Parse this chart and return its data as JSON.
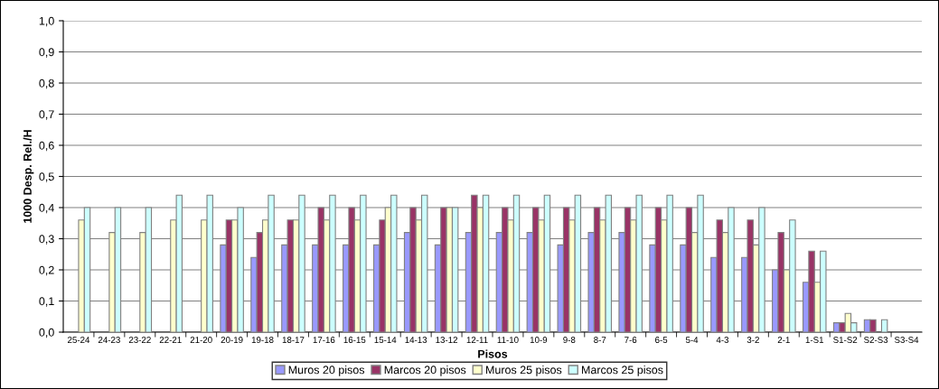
{
  "chart_data": {
    "type": "bar",
    "xlabel": "Pisos",
    "ylabel": "1000 Desp. Rel./H",
    "categories": [
      "25-24",
      "24-23",
      "23-22",
      "22-21",
      "21-20",
      "20-19",
      "19-18",
      "18-17",
      "17-16",
      "16-15",
      "15-14",
      "14-13",
      "13-12",
      "12-11",
      "11-10",
      "10-9",
      "9-8",
      "8-7",
      "7-6",
      "6-5",
      "5-4",
      "4-3",
      "3-2",
      "2-1",
      "1-S1",
      "S1-S2",
      "S2-S3",
      "S3-S4"
    ],
    "series": [
      {
        "name": "Muros 20 pisos",
        "color": "#9999ff",
        "values": [
          null,
          null,
          null,
          null,
          null,
          0.28,
          0.24,
          0.28,
          0.28,
          0.28,
          0.28,
          0.32,
          0.28,
          0.32,
          0.32,
          0.32,
          0.28,
          0.32,
          0.32,
          0.28,
          0.28,
          0.24,
          0.24,
          0.2,
          0.16,
          0.03,
          0.04,
          null
        ]
      },
      {
        "name": "Marcos 20 pisos",
        "color": "#993366",
        "values": [
          null,
          null,
          null,
          null,
          null,
          0.36,
          0.32,
          0.36,
          0.4,
          0.4,
          0.36,
          0.4,
          0.4,
          0.44,
          0.4,
          0.4,
          0.4,
          0.4,
          0.4,
          0.4,
          0.4,
          0.36,
          0.36,
          0.32,
          0.26,
          0.03,
          0.04,
          null
        ]
      },
      {
        "name": "Muros 25 pisos",
        "color": "#ffffcc",
        "values": [
          0.36,
          0.32,
          0.32,
          0.36,
          0.36,
          0.36,
          0.36,
          0.36,
          0.36,
          0.36,
          0.4,
          0.36,
          0.4,
          0.4,
          0.36,
          0.36,
          0.36,
          0.36,
          0.36,
          0.36,
          0.32,
          0.32,
          0.28,
          0.2,
          0.16,
          0.06,
          null,
          null
        ]
      },
      {
        "name": "Marcos 25 pisos",
        "color": "#ccffff",
        "values": [
          0.4,
          0.4,
          0.4,
          0.44,
          0.44,
          0.4,
          0.44,
          0.44,
          0.44,
          0.44,
          0.44,
          0.44,
          0.4,
          0.44,
          0.44,
          0.44,
          0.44,
          0.44,
          0.44,
          0.44,
          0.44,
          0.4,
          0.4,
          0.36,
          0.26,
          0.03,
          0.04,
          null
        ]
      }
    ],
    "ylim": [
      0,
      1.0
    ],
    "yticks": [
      {
        "value": 0,
        "label": "0,0"
      },
      {
        "value": 0.1,
        "label": "0,1"
      },
      {
        "value": 0.2,
        "label": "0,2"
      },
      {
        "value": 0.3,
        "label": "0,3"
      },
      {
        "value": 0.4,
        "label": "0,4"
      },
      {
        "value": 0.5,
        "label": "0,5"
      },
      {
        "value": 0.6,
        "label": "0,6"
      },
      {
        "value": 0.7,
        "label": "0,7"
      },
      {
        "value": 0.8,
        "label": "0,8"
      },
      {
        "value": 0.9,
        "label": "0,9"
      },
      {
        "value": 1.0,
        "label": "1,0"
      }
    ],
    "grid": "y",
    "legend": "bottom"
  }
}
